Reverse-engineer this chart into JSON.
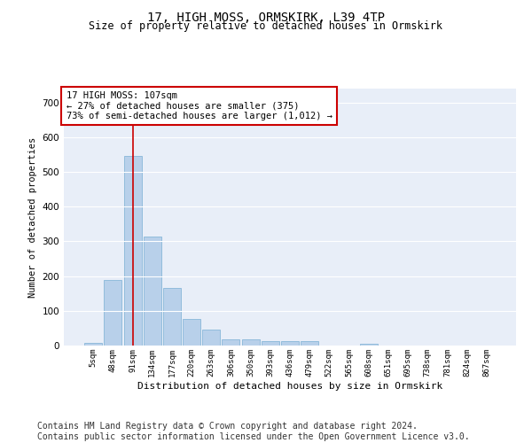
{
  "title": "17, HIGH MOSS, ORMSKIRK, L39 4TP",
  "subtitle": "Size of property relative to detached houses in Ormskirk",
  "xlabel": "Distribution of detached houses by size in Ormskirk",
  "ylabel": "Number of detached properties",
  "bar_color": "#b8d0ea",
  "bar_edge_color": "#7aafd4",
  "background_color": "#e8eef8",
  "grid_color": "#ffffff",
  "vline_color": "#cc0000",
  "vline_x_index": 2,
  "annotation_text": "17 HIGH MOSS: 107sqm\n← 27% of detached houses are smaller (375)\n73% of semi-detached houses are larger (1,012) →",
  "annotation_box_color": "#ffffff",
  "annotation_box_edge": "#cc0000",
  "categories": [
    "5sqm",
    "48sqm",
    "91sqm",
    "134sqm",
    "177sqm",
    "220sqm",
    "263sqm",
    "306sqm",
    "350sqm",
    "393sqm",
    "436sqm",
    "479sqm",
    "522sqm",
    "565sqm",
    "608sqm",
    "651sqm",
    "695sqm",
    "738sqm",
    "781sqm",
    "824sqm",
    "867sqm"
  ],
  "values": [
    8,
    190,
    547,
    315,
    167,
    76,
    47,
    19,
    19,
    13,
    12,
    13,
    0,
    0,
    5,
    0,
    0,
    0,
    0,
    0,
    0
  ],
  "ylim": [
    0,
    740
  ],
  "yticks": [
    0,
    100,
    200,
    300,
    400,
    500,
    600,
    700
  ],
  "footer": "Contains HM Land Registry data © Crown copyright and database right 2024.\nContains public sector information licensed under the Open Government Licence v3.0.",
  "footer_fontsize": 7,
  "title_fontsize": 10,
  "subtitle_fontsize": 8.5
}
